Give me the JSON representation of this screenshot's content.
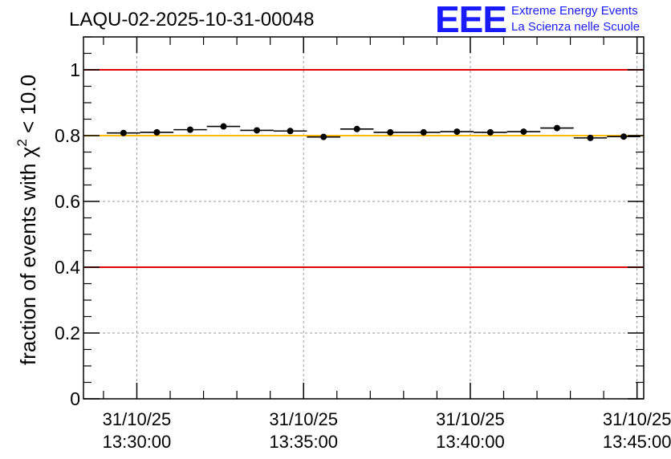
{
  "chart_data": {
    "type": "scatter",
    "title": "LAQU-02-2025-10-31-00048",
    "ylabel_main": "fraction of events with ",
    "ylabel_symbol": "χ",
    "ylabel_sup": "2",
    "ylabel_tail": " < 10.0",
    "ylim": [
      0,
      1.1
    ],
    "yticks": [
      {
        "value": 0,
        "label": "0"
      },
      {
        "value": 0.2,
        "label": "0.2"
      },
      {
        "value": 0.4,
        "label": "0.4"
      },
      {
        "value": 0.6,
        "label": "0.6"
      },
      {
        "value": 0.8,
        "label": "0.8"
      },
      {
        "value": 1,
        "label": "1"
      }
    ],
    "xlim_minutes": [
      -1.6,
      15.2
    ],
    "xticks": [
      {
        "minute": 0,
        "date": "31/10/25",
        "time": "13:30:00"
      },
      {
        "minute": 5,
        "date": "31/10/25",
        "time": "13:35:00"
      },
      {
        "minute": 10,
        "date": "31/10/25",
        "time": "13:40:00"
      },
      {
        "minute": 15,
        "date": "31/10/25",
        "time": "13:45:00"
      }
    ],
    "grid": true,
    "ref_lines": [
      {
        "value": 1.0,
        "color": "#e00000"
      },
      {
        "value": 0.4,
        "color": "#e00000"
      },
      {
        "value": 0.8,
        "color": "#ffbb00"
      }
    ],
    "point_color": "#000000",
    "bin_halfwidth_minutes": 0.5,
    "points": [
      {
        "x": -0.4,
        "y": 0.808
      },
      {
        "x": 0.6,
        "y": 0.81
      },
      {
        "x": 1.6,
        "y": 0.818
      },
      {
        "x": 2.6,
        "y": 0.828
      },
      {
        "x": 3.6,
        "y": 0.816
      },
      {
        "x": 4.6,
        "y": 0.814
      },
      {
        "x": 5.6,
        "y": 0.796
      },
      {
        "x": 6.6,
        "y": 0.82
      },
      {
        "x": 7.6,
        "y": 0.81
      },
      {
        "x": 8.6,
        "y": 0.81
      },
      {
        "x": 9.6,
        "y": 0.812
      },
      {
        "x": 10.6,
        "y": 0.81
      },
      {
        "x": 11.6,
        "y": 0.812
      },
      {
        "x": 12.6,
        "y": 0.823
      },
      {
        "x": 13.6,
        "y": 0.793
      },
      {
        "x": 14.6,
        "y": 0.797
      }
    ]
  },
  "logo": {
    "mark": "EEE",
    "line1": "Extreme Energy Events",
    "line2": "La Scienza nelle Scuole",
    "color": "#1a1aff"
  }
}
